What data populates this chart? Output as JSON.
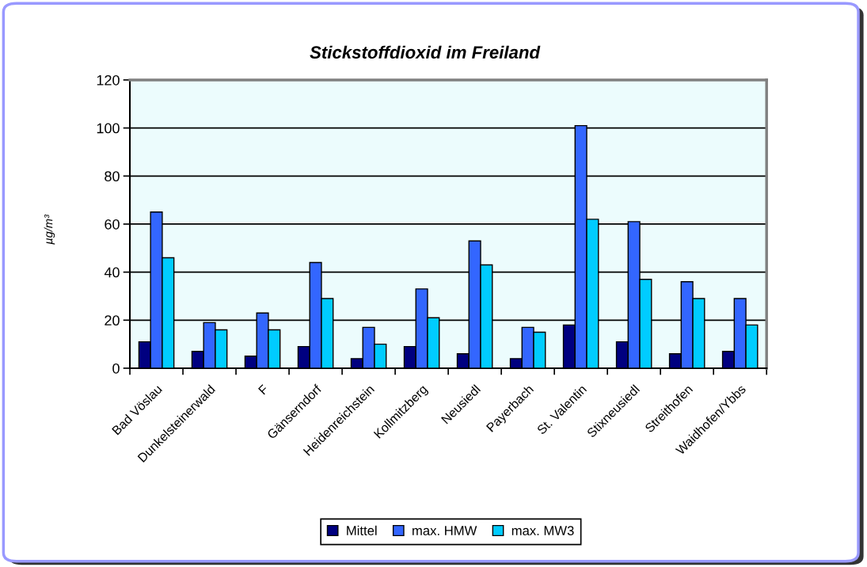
{
  "chart_data": {
    "type": "bar",
    "title": "Stickstoffdioxid im Freiland",
    "ylabel": "µg/m³",
    "categories": [
      "Bad Vöslau",
      "Dunkelsteinerwald",
      "F",
      "Gänserndorf",
      "Heidenreichstein",
      "Kollmitzberg",
      "Neusiedl",
      "Payerbach",
      "St. Valentin",
      "Stixneusiedl",
      "Streithofen",
      "Waidhofen/Ybbs"
    ],
    "series": [
      {
        "name": "Mittel",
        "color": "#000080",
        "values": [
          11,
          7,
          5,
          9,
          4,
          9,
          6,
          4,
          18,
          11,
          6,
          7
        ]
      },
      {
        "name": "max. HMW",
        "color": "#3366ff",
        "values": [
          65,
          19,
          23,
          44,
          17,
          33,
          53,
          17,
          101,
          61,
          36,
          29
        ]
      },
      {
        "name": "max. MW3",
        "color": "#00ccff",
        "values": [
          46,
          16,
          16,
          29,
          10,
          21,
          43,
          15,
          62,
          37,
          29,
          18
        ]
      }
    ],
    "ylim": [
      0,
      120
    ],
    "yticks": [
      0,
      20,
      40,
      60,
      80,
      100,
      120
    ],
    "grid": "y",
    "legend": "bottom"
  }
}
